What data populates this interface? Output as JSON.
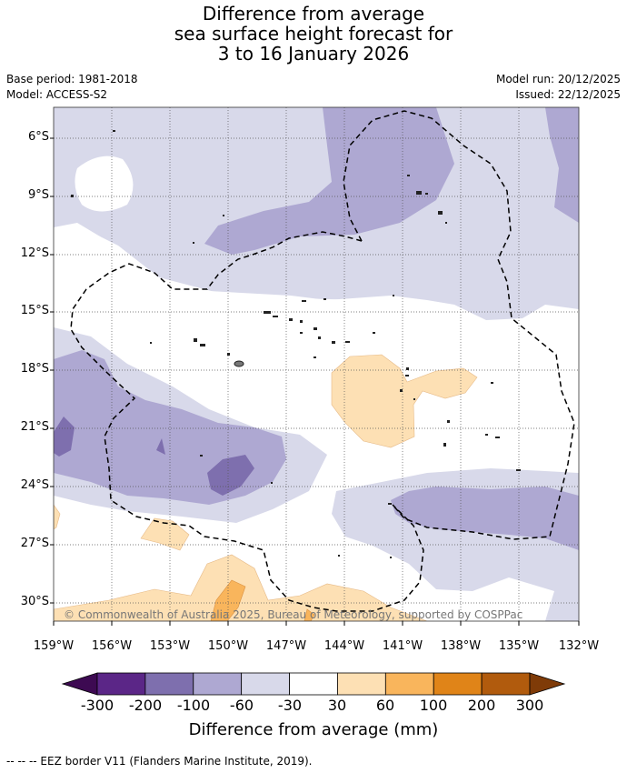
{
  "title": {
    "line1": "Difference from average",
    "line2": "sea surface height forecast for",
    "line3": "3 to 16 January 2026"
  },
  "meta": {
    "base_period": "Base period: 1981-2018",
    "model": "Model: ACCESS-S2",
    "model_run": "Model run: 20/12/2025",
    "issued": "Issued: 22/12/2025"
  },
  "map": {
    "lat_labels": [
      "6°S",
      "9°S",
      "12°S",
      "15°S",
      "18°S",
      "21°S",
      "24°S",
      "27°S",
      "30°S"
    ],
    "lon_labels": [
      "159°W",
      "156°W",
      "153°W",
      "150°W",
      "147°W",
      "144°W",
      "141°W",
      "138°W",
      "135°W",
      "132°W"
    ],
    "copyright": "© Commonwealth of Australia 2025, Bureau of Meteorology, supported by COSPPac"
  },
  "colorbar": {
    "tick_labels": [
      "-300",
      "-200",
      "-100",
      "-60",
      "-30",
      "30",
      "60",
      "100",
      "200",
      "300"
    ],
    "colors": [
      "#3d0a52",
      "#5b2687",
      "#7e6fae",
      "#aea8d2",
      "#d8d9ea",
      "#ffffff",
      "#fde0b4",
      "#f9b55c",
      "#e08418",
      "#b15b0d",
      "#7f3b08"
    ],
    "title": "Difference from average (mm)"
  },
  "footnote": "--  --  -- EEZ border V11 (Flanders Marine Institute, 2019)."
}
